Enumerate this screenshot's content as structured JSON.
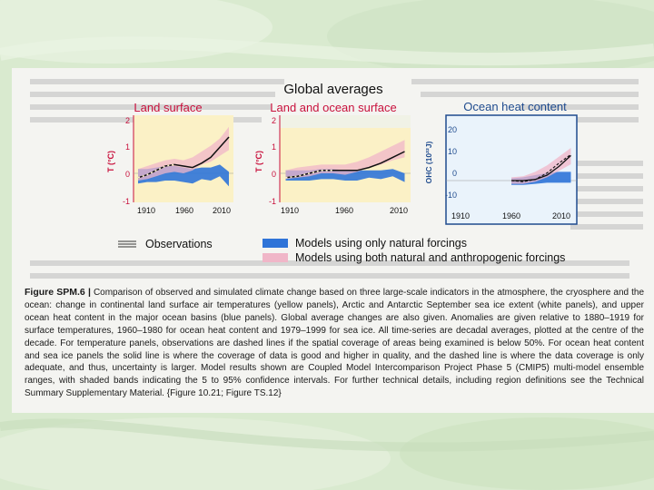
{
  "figure": {
    "title": "Global averages",
    "colors": {
      "land_bg": "#fbf1c6",
      "ocean_bg": "#eaf3fb",
      "natural_band": "#2f74d8",
      "anthro_band": "#f0b6c8",
      "obs_line": "#111111",
      "title_red": "#c8103c",
      "axis_red": "#c8103c",
      "ocean_title": "#1f4b8e"
    },
    "panels": [
      {
        "key": "land",
        "title": "Land surface",
        "ylabel": "T (°C)",
        "yticks": [
          "2",
          "1",
          "0",
          "-1"
        ],
        "xticks": [
          "1910",
          "1960",
          "2010"
        ]
      },
      {
        "key": "land_ocean",
        "title": "Land and ocean surface",
        "ylabel": "T (°C)",
        "yticks": [
          "2",
          "1",
          "0",
          "-1"
        ],
        "xticks": [
          "1910",
          "1960",
          "2010"
        ]
      },
      {
        "key": "ohc",
        "title": "Ocean heat content",
        "ylabel": "OHC (10²²J)",
        "yticks": [
          "20",
          "10",
          "0",
          "-10"
        ],
        "xticks": [
          "1910",
          "1960",
          "2010"
        ]
      }
    ]
  },
  "legend": {
    "observations": "Observations",
    "natural": "Models using only natural forcings",
    "both": "Models using both natural and anthropogenic forcings"
  },
  "caption": {
    "label": "Figure SPM.6 |",
    "text": "Comparison of observed and simulated climate change based on three large-scale indicators in the atmosphere, the cryosphere and the ocean: change in continental land surface air temperatures (yellow panels), Arctic and Antarctic September sea ice extent (white panels), and upper ocean heat content in the major ocean basins (blue panels). Global average changes are also given. Anomalies are given relative to 1880–1919 for surface temperatures, 1960–1980 for ocean heat content and 1979–1999 for sea ice. All time-series are decadal averages, plotted at the centre of the decade. For temperature panels, observations are dashed lines if the spatial coverage of areas being examined is below 50%. For ocean heat content and sea ice panels the solid line is where the coverage of data is good and higher in quality, and the dashed line is where the data coverage is only adequate, and thus, uncertainty is larger. Model results shown are Coupled Model Intercomparison Project Phase 5 (CMIP5) multi-model ensemble ranges, with shaded bands indicating the 5 to 95% confidence intervals. For further technical details, including region definitions see the Technical Summary Supplementary Material. {Figure 10.21; Figure TS.12}"
  },
  "chart_data": [
    {
      "type": "area",
      "title": "Land surface",
      "xlabel": "",
      "ylabel": "T (°C)",
      "x": [
        1910,
        1920,
        1930,
        1940,
        1950,
        1960,
        1970,
        1980,
        1990,
        2000,
        2010
      ],
      "xlim": [
        1905,
        2015
      ],
      "ylim": [
        -1,
        2
      ],
      "series": [
        {
          "name": "Observations",
          "values": [
            -0.15,
            -0.05,
            0.1,
            0.25,
            0.3,
            0.25,
            0.2,
            0.35,
            0.55,
            0.9,
            1.25
          ]
        },
        {
          "name": "Models using only natural forcings",
          "low": [
            -0.35,
            -0.3,
            -0.3,
            -0.25,
            -0.25,
            -0.3,
            -0.35,
            -0.2,
            -0.25,
            -0.1,
            -0.45
          ],
          "high": [
            0.15,
            0.15,
            0.2,
            0.25,
            0.25,
            0.2,
            0.15,
            0.2,
            0.2,
            0.3,
            0.05
          ]
        },
        {
          "name": "Models using both natural and anthropogenic forcings",
          "low": [
            -0.25,
            -0.2,
            -0.1,
            0.0,
            0.05,
            0.0,
            0.1,
            0.3,
            0.4,
            0.6,
            0.8
          ],
          "high": [
            0.15,
            0.25,
            0.35,
            0.45,
            0.5,
            0.45,
            0.55,
            0.75,
            0.95,
            1.2,
            1.6
          ]
        }
      ]
    },
    {
      "type": "area",
      "title": "Land and ocean surface",
      "xlabel": "",
      "ylabel": "T (°C)",
      "x": [
        1910,
        1920,
        1930,
        1940,
        1950,
        1960,
        1970,
        1980,
        1990,
        2000,
        2010
      ],
      "xlim": [
        1905,
        2015
      ],
      "ylim": [
        -1,
        2
      ],
      "series": [
        {
          "name": "Observations",
          "values": [
            -0.15,
            -0.1,
            0.0,
            0.1,
            0.1,
            0.1,
            0.1,
            0.2,
            0.35,
            0.55,
            0.75
          ]
        },
        {
          "name": "Models using only natural forcings",
          "low": [
            -0.25,
            -0.25,
            -0.25,
            -0.2,
            -0.2,
            -0.25,
            -0.25,
            -0.15,
            -0.2,
            -0.1,
            -0.3
          ],
          "high": [
            0.1,
            0.1,
            0.1,
            0.15,
            0.15,
            0.1,
            0.1,
            0.1,
            0.1,
            0.15,
            0.0
          ]
        },
        {
          "name": "Models using both natural and anthropogenic forcings",
          "low": [
            -0.2,
            -0.15,
            -0.1,
            0.0,
            0.0,
            -0.05,
            0.05,
            0.2,
            0.3,
            0.45,
            0.55
          ],
          "high": [
            0.1,
            0.2,
            0.25,
            0.3,
            0.3,
            0.3,
            0.4,
            0.55,
            0.75,
            0.95,
            1.15
          ]
        }
      ]
    },
    {
      "type": "area",
      "title": "Ocean heat content",
      "xlabel": "",
      "ylabel": "OHC (10²²J)",
      "x": [
        1960,
        1970,
        1980,
        1990,
        2000,
        2010
      ],
      "xlim": [
        1905,
        2015
      ],
      "ylim": [
        -15,
        25
      ],
      "series": [
        {
          "name": "Observations (solid)",
          "values": [
            0,
            0,
            0.5,
            2.5,
            6.5,
            11.5
          ]
        },
        {
          "name": "Observations (dashed)",
          "values": [
            0,
            -0.5,
            0.5,
            3.5,
            8,
            12
          ]
        },
        {
          "name": "Models using only natural forcings",
          "low": [
            -2,
            -2,
            -1.5,
            -1,
            -1,
            -1
          ],
          "high": [
            1,
            1.5,
            2.5,
            3.5,
            4,
            4
          ]
        },
        {
          "name": "Models using both natural and anthropogenic forcings",
          "low": [
            -1.5,
            -1.5,
            -0.5,
            1.5,
            4.5,
            7.5
          ],
          "high": [
            1.5,
            2,
            4,
            7,
            11,
            15
          ]
        }
      ]
    }
  ]
}
